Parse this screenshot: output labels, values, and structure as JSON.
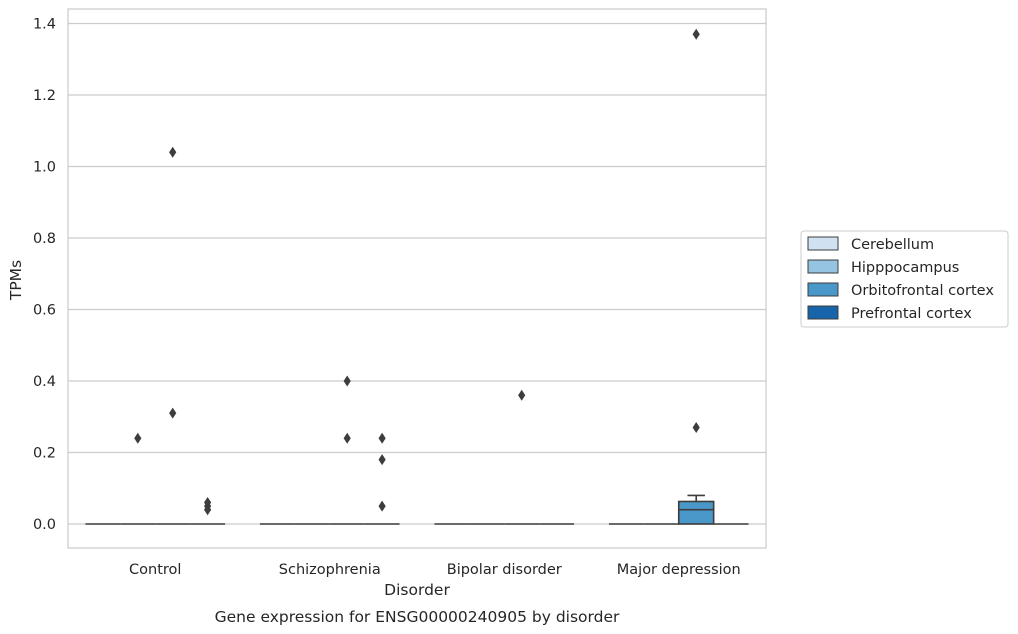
{
  "chart_data": {
    "type": "box",
    "title": "Gene expression for ENSG00000240905 by disorder",
    "xlabel": "Disorder",
    "ylabel": "TPMs",
    "ylim": [
      -0.068,
      1.44
    ],
    "yticks": [
      "0.0",
      "0.2",
      "0.4",
      "0.6",
      "0.8",
      "1.0",
      "1.2",
      "1.4"
    ],
    "grid": "horizontal",
    "legend_position": "right",
    "categories": [
      "Control",
      "Schizophrenia",
      "Bipolar disorder",
      "Major depression"
    ],
    "series": [
      {
        "name": "Cerebellum",
        "color": "#d0e1f2"
      },
      {
        "name": "Hipppocampus",
        "color": "#94c4df"
      },
      {
        "name": "Orbitofrontal cortex",
        "color": "#4a98c9"
      },
      {
        "name": "Prefrontal cortex",
        "color": "#1764ab"
      }
    ],
    "boxes": [
      {
        "category": 0,
        "series": 0,
        "q1": 0,
        "median": 0,
        "q3": 0,
        "whisker_low": 0,
        "whisker_high": 0
      },
      {
        "category": 0,
        "series": 1,
        "q1": 0,
        "median": 0,
        "q3": 0,
        "whisker_low": 0,
        "whisker_high": 0
      },
      {
        "category": 0,
        "series": 2,
        "q1": 0,
        "median": 0,
        "q3": 0,
        "whisker_low": 0,
        "whisker_high": 0
      },
      {
        "category": 0,
        "series": 3,
        "q1": 0,
        "median": 0,
        "q3": 0,
        "whisker_low": 0,
        "whisker_high": 0
      },
      {
        "category": 1,
        "series": 0,
        "q1": 0,
        "median": 0,
        "q3": 0,
        "whisker_low": 0,
        "whisker_high": 0
      },
      {
        "category": 1,
        "series": 1,
        "q1": 0,
        "median": 0,
        "q3": 0,
        "whisker_low": 0,
        "whisker_high": 0
      },
      {
        "category": 1,
        "series": 2,
        "q1": 0,
        "median": 0,
        "q3": 0,
        "whisker_low": 0,
        "whisker_high": 0
      },
      {
        "category": 1,
        "series": 3,
        "q1": 0,
        "median": 0,
        "q3": 0,
        "whisker_low": 0,
        "whisker_high": 0
      },
      {
        "category": 2,
        "series": 0,
        "q1": 0,
        "median": 0,
        "q3": 0,
        "whisker_low": 0,
        "whisker_high": 0
      },
      {
        "category": 2,
        "series": 1,
        "q1": 0,
        "median": 0,
        "q3": 0,
        "whisker_low": 0,
        "whisker_high": 0
      },
      {
        "category": 2,
        "series": 2,
        "q1": 0,
        "median": 0,
        "q3": 0,
        "whisker_low": 0,
        "whisker_high": 0
      },
      {
        "category": 2,
        "series": 3,
        "q1": 0,
        "median": 0,
        "q3": 0,
        "whisker_low": 0,
        "whisker_high": 0
      },
      {
        "category": 3,
        "series": 0,
        "q1": 0,
        "median": 0,
        "q3": 0,
        "whisker_low": 0,
        "whisker_high": 0
      },
      {
        "category": 3,
        "series": 1,
        "q1": 0,
        "median": 0,
        "q3": 0,
        "whisker_low": 0,
        "whisker_high": 0
      },
      {
        "category": 3,
        "series": 2,
        "q1": 0,
        "median": 0.04,
        "q3": 0.063,
        "whisker_low": 0,
        "whisker_high": 0.08
      },
      {
        "category": 3,
        "series": 3,
        "q1": 0,
        "median": 0,
        "q3": 0,
        "whisker_low": 0,
        "whisker_high": 0
      }
    ],
    "outliers": [
      {
        "category": 0,
        "series": 1,
        "y": 0.24
      },
      {
        "category": 0,
        "series": 2,
        "y": 1.04
      },
      {
        "category": 0,
        "series": 2,
        "y": 0.31
      },
      {
        "category": 0,
        "series": 3,
        "y": 0.06
      },
      {
        "category": 0,
        "series": 3,
        "y": 0.05
      },
      {
        "category": 0,
        "series": 3,
        "y": 0.04
      },
      {
        "category": 1,
        "series": 2,
        "y": 0.4
      },
      {
        "category": 1,
        "series": 2,
        "y": 0.24
      },
      {
        "category": 1,
        "series": 3,
        "y": 0.24
      },
      {
        "category": 1,
        "series": 3,
        "y": 0.18
      },
      {
        "category": 1,
        "series": 3,
        "y": 0.05
      },
      {
        "category": 2,
        "series": 2,
        "y": 0.36
      },
      {
        "category": 3,
        "series": 2,
        "y": 1.37
      },
      {
        "category": 3,
        "series": 2,
        "y": 0.27
      }
    ]
  }
}
